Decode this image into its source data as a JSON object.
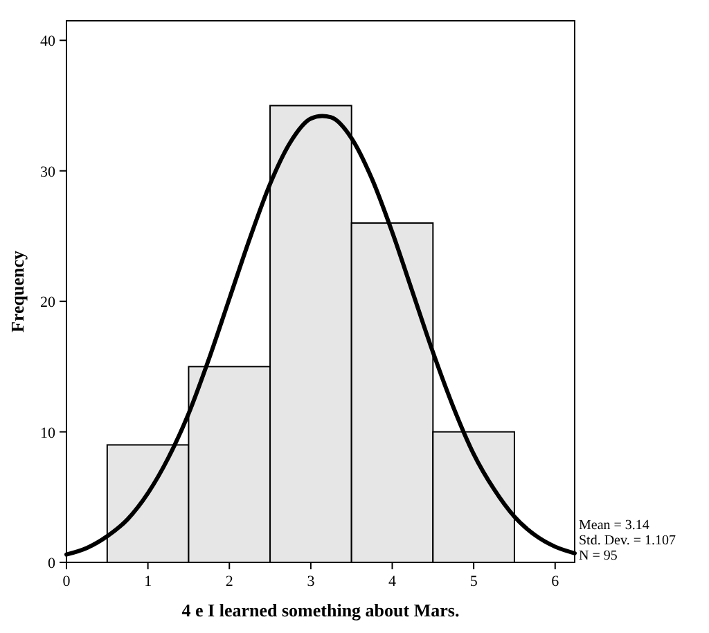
{
  "chart_data": {
    "type": "histogram",
    "xlabel": "4 e I learned something about Mars.",
    "ylabel": "Frequency",
    "xlim": [
      0,
      6.24
    ],
    "ylim": [
      0,
      41.5
    ],
    "xticks": [
      0,
      1,
      2,
      3,
      4,
      5,
      6
    ],
    "yticks": [
      0,
      10,
      20,
      30,
      40
    ],
    "series": [
      {
        "bins": [
          0.5,
          1.5,
          2.5,
          3.5,
          4.5,
          5.5
        ],
        "values": [
          9,
          15,
          35,
          26,
          10
        ],
        "color": "#e6e6e6"
      },
      {
        "type": "line",
        "color": "#000000",
        "x": [
          0,
          0.25,
          0.5,
          0.75,
          1,
          1.25,
          1.5,
          1.75,
          2,
          2.25,
          2.5,
          2.75,
          3,
          3.14,
          3.25,
          3.5,
          3.75,
          4,
          4.25,
          4.5,
          4.75,
          5,
          5.25,
          5.5,
          5.75,
          6,
          6.24
        ],
        "values": [
          0.6,
          1.1,
          2,
          3.3,
          5.3,
          8,
          11.4,
          15.6,
          20.2,
          24.8,
          29,
          32.2,
          34,
          34.2,
          34.1,
          32.5,
          29.4,
          25.3,
          20.7,
          16.1,
          11.9,
          8.3,
          5.6,
          3.5,
          2.1,
          1.2,
          0.7
        ]
      }
    ],
    "annotations": [
      "Mean = 3.14",
      "Std. Dev. = 1.107",
      "N = 95"
    ]
  }
}
